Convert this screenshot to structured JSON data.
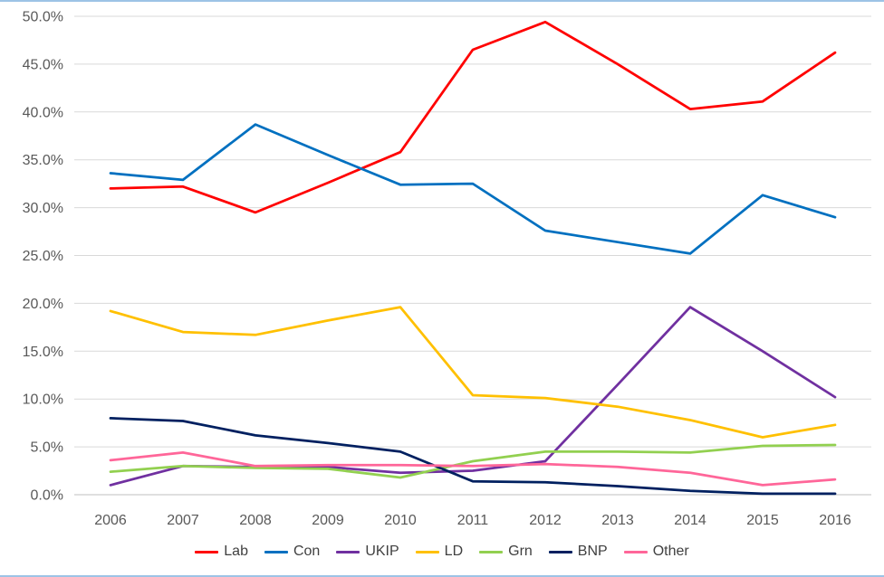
{
  "frame": {
    "background": "#FFFFFF",
    "border_color": "#9DC3E6",
    "grid_color": "#D9D9D9",
    "axis_color": "#BFBFBF",
    "tick_label_color": "#595959",
    "legend_label_color": "#404040"
  },
  "chart_data": {
    "type": "line",
    "title": "",
    "xlabel": "",
    "ylabel": "",
    "grid": true,
    "legend_position": "bottom",
    "x_labels": [
      "2006",
      "2007",
      "2008",
      "2009",
      "2010",
      "2011",
      "2012",
      "2013",
      "2014",
      "2015",
      "2016"
    ],
    "y_axis": {
      "min": 0,
      "max": 50,
      "step": 5,
      "tick_labels": [
        "0.0%",
        "5.0%",
        "10.0%",
        "15.0%",
        "20.0%",
        "25.0%",
        "30.0%",
        "35.0%",
        "40.0%",
        "45.0%",
        "50.0%"
      ]
    },
    "series": [
      {
        "name": "Lab",
        "color": "#FF0000",
        "values": [
          32.0,
          32.2,
          29.5,
          32.6,
          35.8,
          46.5,
          49.4,
          45.0,
          40.3,
          41.1,
          46.2
        ]
      },
      {
        "name": "Con",
        "color": "#0070C0",
        "values": [
          33.6,
          32.9,
          38.7,
          35.5,
          32.4,
          32.5,
          27.6,
          26.4,
          25.2,
          31.3,
          29.0
        ]
      },
      {
        "name": "UKIP",
        "color": "#7030A0",
        "values": [
          1.0,
          3.0,
          2.9,
          2.9,
          2.3,
          2.5,
          3.5,
          11.5,
          19.6,
          15.0,
          10.2
        ]
      },
      {
        "name": "LD",
        "color": "#FFC000",
        "values": [
          19.2,
          17.0,
          16.7,
          18.2,
          19.6,
          10.4,
          10.1,
          9.2,
          7.8,
          6.0,
          7.3
        ]
      },
      {
        "name": "Grn",
        "color": "#92D050",
        "values": [
          2.4,
          3.0,
          2.8,
          2.7,
          1.8,
          3.5,
          4.5,
          4.5,
          4.4,
          5.1,
          5.2
        ]
      },
      {
        "name": "BNP",
        "color": "#002060",
        "values": [
          8.0,
          7.7,
          6.2,
          5.4,
          4.5,
          1.4,
          1.3,
          0.9,
          0.4,
          0.1,
          0.1
        ]
      },
      {
        "name": "Other",
        "color": "#FF6699",
        "values": [
          3.6,
          4.4,
          3.0,
          3.1,
          3.1,
          3.0,
          3.2,
          2.9,
          2.3,
          1.0,
          1.6
        ]
      }
    ]
  }
}
